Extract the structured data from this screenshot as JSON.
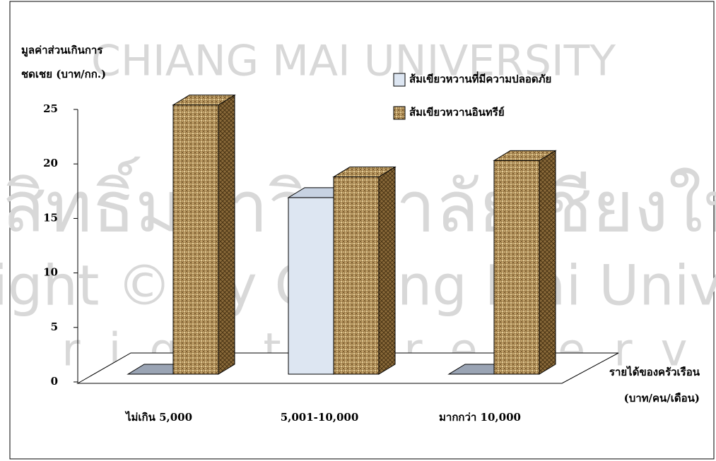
{
  "chart_data": {
    "type": "bar3d",
    "ylabel": [
      "มูลค่าส่วนเกินการ",
      "ชดเชย (บาท/กก.)"
    ],
    "xlabel": [
      "รายได้ของครัวเรือน",
      "(บาท/คน/เดือน)"
    ],
    "categories": [
      "ไม่เกิน 5,000",
      "5,001-10,000",
      "มากกว่า 10,000"
    ],
    "series": [
      {
        "name": "ส้มเขียวหวานที่มีความปลอดภัย",
        "color": "#dde6f2",
        "values": [
          0,
          16.2,
          0
        ]
      },
      {
        "name": "ส้มเขียวหวานอินทรีย์",
        "color": "#b8965c",
        "values": [
          24.7,
          18.1,
          19.6
        ]
      }
    ],
    "ylim": [
      0,
      25
    ],
    "yticks": [
      0,
      5,
      10,
      15,
      20,
      25
    ],
    "legend": "top-right",
    "watermark": [
      "ลิขสิทธิ์มหาวิทยาลัยเชียงใหม่",
      "Copyright © by Chiang Mai University",
      "All rights reserved",
      "CHIANG MAI UNIVERSITY"
    ]
  }
}
